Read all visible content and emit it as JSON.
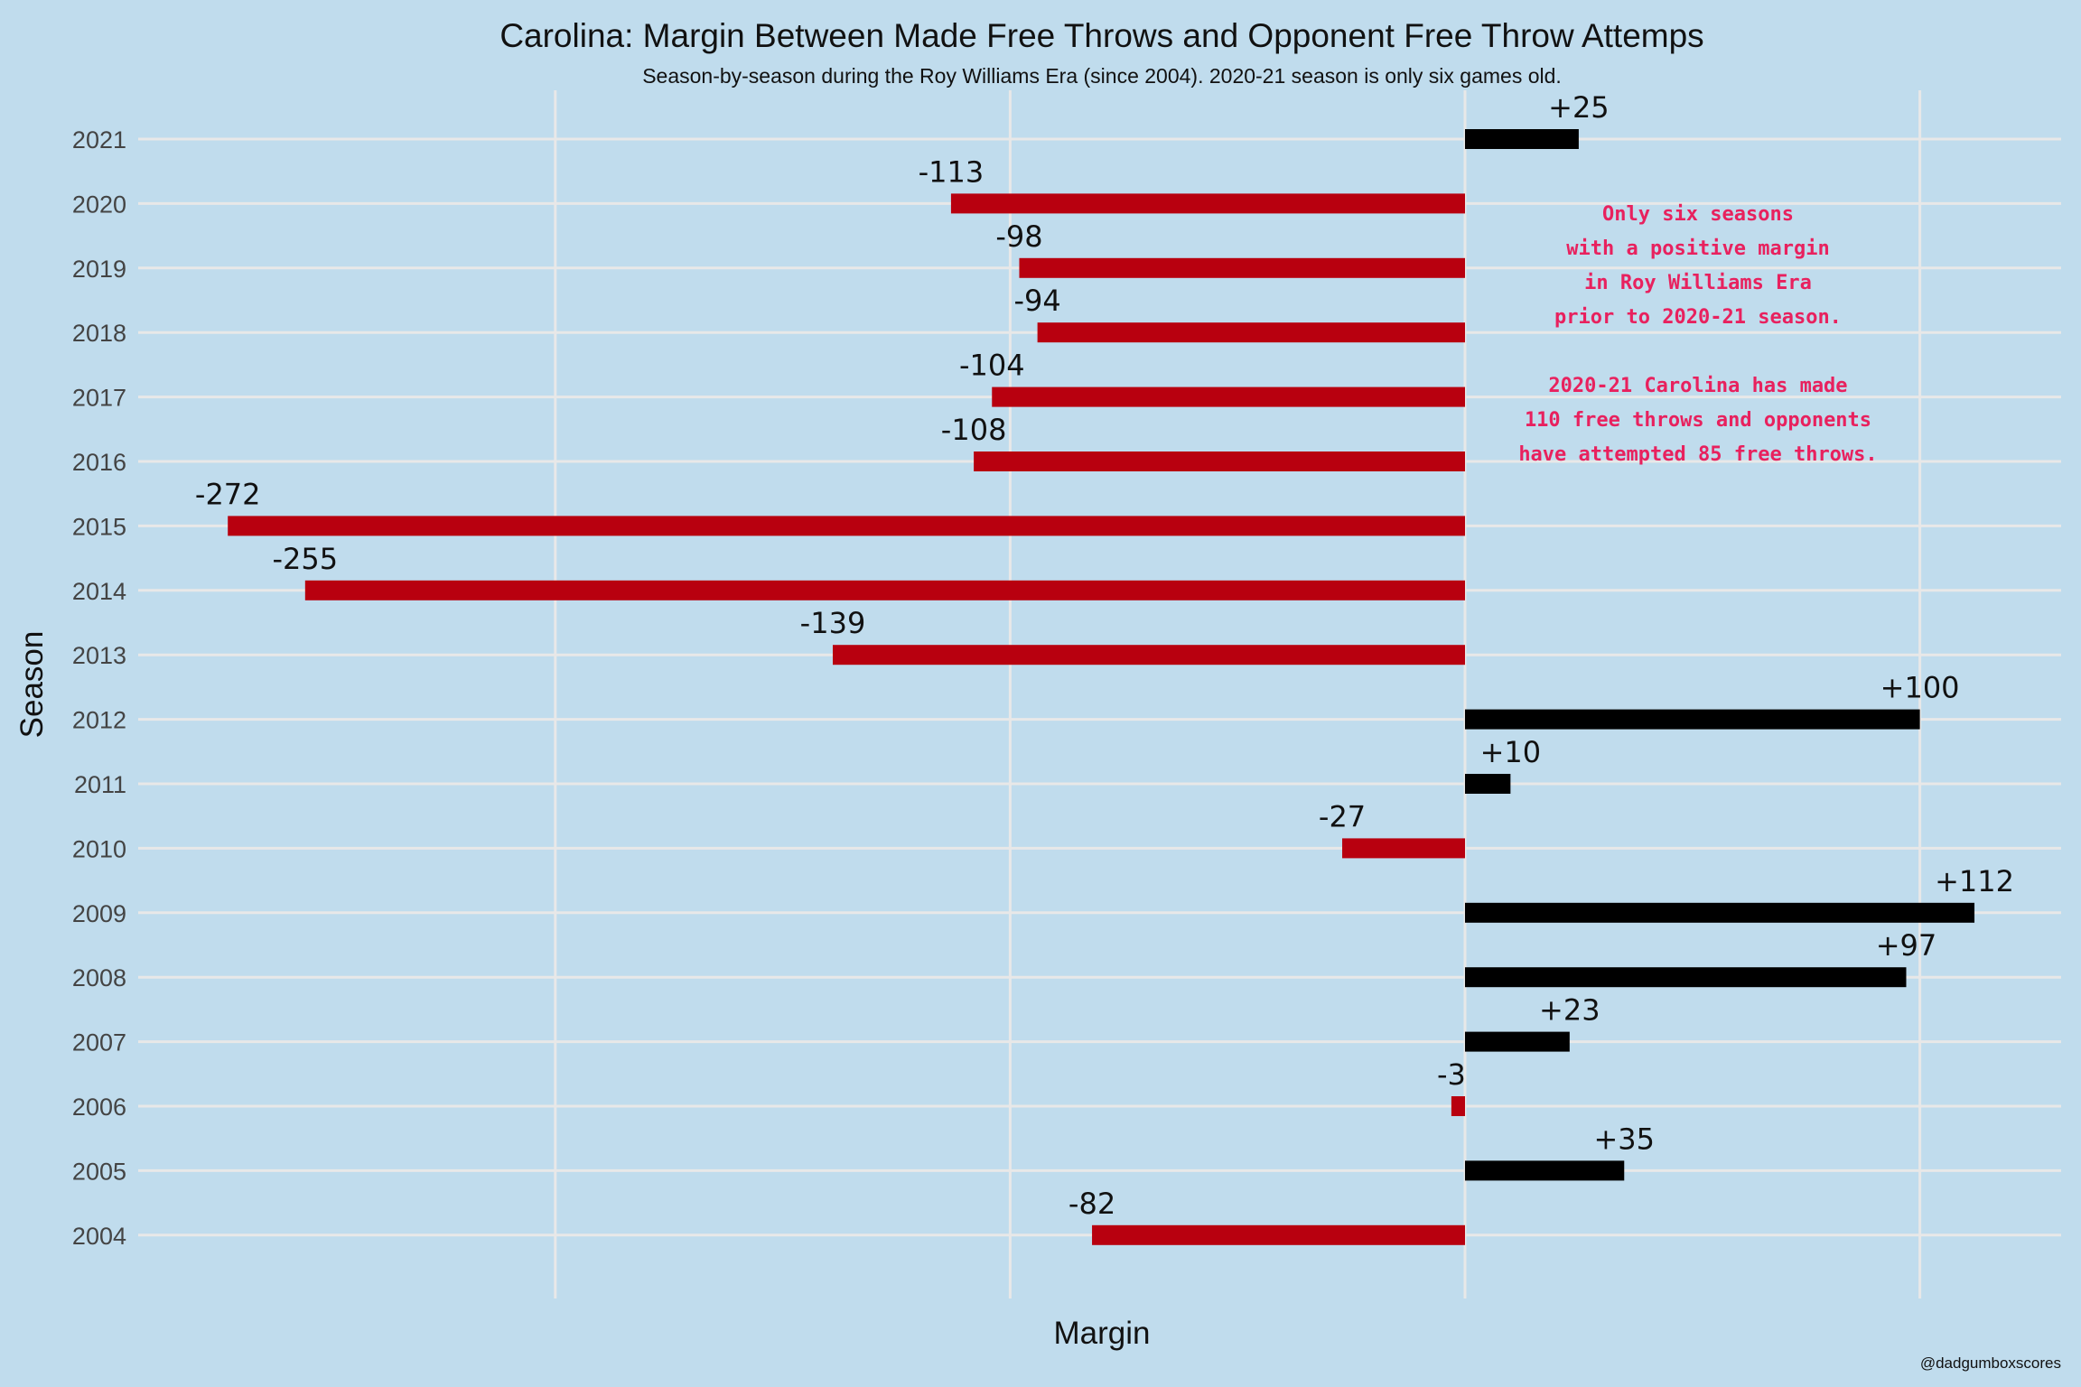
{
  "chart_data": {
    "type": "bar",
    "orientation": "horizontal",
    "title": "Carolina: Margin Between Made Free Throws and Opponent Free Throw Attemps",
    "subtitle": "Season-by-season during the Roy Williams Era (since 2004). 2020-21 season is only six games old.",
    "xlabel": "Margin",
    "ylabel": "Season",
    "xlim": [
      -272,
      112
    ],
    "grid": true,
    "categories": [
      "2004",
      "2005",
      "2006",
      "2007",
      "2008",
      "2009",
      "2010",
      "2011",
      "2012",
      "2013",
      "2014",
      "2015",
      "2016",
      "2017",
      "2018",
      "2019",
      "2020",
      "2021"
    ],
    "values": [
      -82,
      35,
      -3,
      23,
      97,
      112,
      -27,
      10,
      100,
      -139,
      -255,
      -272,
      -108,
      -104,
      -94,
      -98,
      -113,
      25
    ],
    "labels": [
      "-82",
      "+35",
      "-3",
      "+23",
      "+97",
      "+112",
      "-27",
      "+10",
      "+100",
      "-139",
      "-255",
      "-272",
      "-108",
      "-104",
      "-94",
      "-98",
      "-113",
      "+25"
    ],
    "colors": {
      "positive": "#000000",
      "negative": "#b8000f",
      "annotation": "#e8215e"
    },
    "annotation": [
      "Only six seasons",
      "with a positive margin",
      "in Roy Williams Era",
      "prior to 2020-21 season.",
      "",
      "2020-21 Carolina has made",
      "110 free throws and opponents",
      "have attempted 85 free throws."
    ],
    "caption": "@dadgumboxscores"
  }
}
